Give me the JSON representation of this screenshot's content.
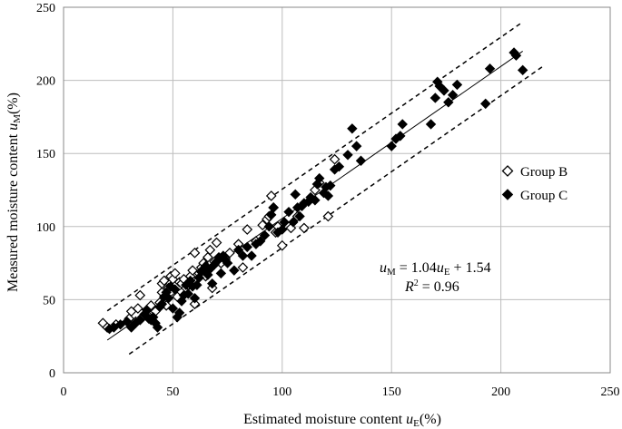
{
  "chart_data": {
    "type": "scatter",
    "title": "",
    "xlabel": "Estimated moisture content u_E(%)",
    "ylabel": "Measured moisture content u_M(%)",
    "xlabel_parts": {
      "text": "Estimated moisture content ",
      "var": "u",
      "sub": "E",
      "suffix": "(%)"
    },
    "ylabel_parts": {
      "text": "Measured moisture content ",
      "var": "u",
      "sub": "M",
      "suffix": "(%)"
    },
    "xlim": [
      0,
      250
    ],
    "ylim": [
      0,
      250
    ],
    "xticks": [
      "0",
      "50",
      "100",
      "150",
      "200",
      "250"
    ],
    "yticks": [
      "0",
      "50",
      "100",
      "150",
      "200",
      "250"
    ],
    "grid": true,
    "legend_position": "right",
    "regression": {
      "slope": 1.04,
      "intercept": 1.54,
      "x_range": [
        20,
        210
      ]
    },
    "bounds": {
      "offset": 20,
      "x_range": [
        30,
        220
      ]
    },
    "annotation": {
      "eq_var": "u",
      "eq_sub_lhs": "M",
      "eq_mid": " = 1.04",
      "eq_sub_rhs": "E",
      "eq_tail": " + 1.54",
      "r2_var": "R",
      "r2_sup": "2",
      "r2_tail": " = 0.96"
    },
    "series": [
      {
        "name": "Group B",
        "marker": "open-diamond",
        "points": [
          [
            18,
            34
          ],
          [
            20,
            31
          ],
          [
            24,
            33
          ],
          [
            30,
            37
          ],
          [
            31,
            42
          ],
          [
            33,
            35
          ],
          [
            34,
            44
          ],
          [
            35,
            53
          ],
          [
            36,
            38
          ],
          [
            38,
            40
          ],
          [
            39,
            44
          ],
          [
            40,
            46
          ],
          [
            42,
            42
          ],
          [
            44,
            48
          ],
          [
            45,
            55
          ],
          [
            45,
            61
          ],
          [
            46,
            63
          ],
          [
            47,
            46
          ],
          [
            48,
            58
          ],
          [
            49,
            66
          ],
          [
            50,
            64
          ],
          [
            51,
            68
          ],
          [
            52,
            52
          ],
          [
            53,
            62
          ],
          [
            54,
            61
          ],
          [
            55,
            64
          ],
          [
            56,
            58
          ],
          [
            57,
            60
          ],
          [
            58,
            66
          ],
          [
            59,
            70
          ],
          [
            60,
            47
          ],
          [
            60,
            82
          ],
          [
            62,
            68
          ],
          [
            63,
            72
          ],
          [
            64,
            75
          ],
          [
            65,
            66
          ],
          [
            66,
            79
          ],
          [
            67,
            84
          ],
          [
            68,
            58
          ],
          [
            69,
            76
          ],
          [
            70,
            89
          ],
          [
            72,
            75
          ],
          [
            74,
            78
          ],
          [
            76,
            82
          ],
          [
            80,
            88
          ],
          [
            82,
            72
          ],
          [
            84,
            98
          ],
          [
            88,
            90
          ],
          [
            91,
            101
          ],
          [
            93,
            105
          ],
          [
            94,
            107
          ],
          [
            95,
            121
          ],
          [
            96,
            113
          ],
          [
            97,
            96
          ],
          [
            98,
            100
          ],
          [
            100,
            87
          ],
          [
            104,
            99
          ],
          [
            107,
            107
          ],
          [
            110,
            99
          ],
          [
            115,
            125
          ],
          [
            117,
            130
          ],
          [
            121,
            107
          ],
          [
            124,
            146
          ]
        ]
      },
      {
        "name": "Group C",
        "marker": "filled-diamond",
        "points": [
          [
            21,
            30
          ],
          [
            23,
            31
          ],
          [
            26,
            33
          ],
          [
            29,
            35
          ],
          [
            31,
            31
          ],
          [
            33,
            34
          ],
          [
            35,
            36
          ],
          [
            37,
            40
          ],
          [
            38,
            43
          ],
          [
            39,
            37
          ],
          [
            40,
            36
          ],
          [
            41,
            38
          ],
          [
            42,
            34
          ],
          [
            43,
            31
          ],
          [
            44,
            45
          ],
          [
            45,
            47
          ],
          [
            46,
            52
          ],
          [
            47,
            55
          ],
          [
            48,
            51
          ],
          [
            49,
            59
          ],
          [
            50,
            44
          ],
          [
            51,
            57
          ],
          [
            52,
            38
          ],
          [
            53,
            41
          ],
          [
            54,
            49
          ],
          [
            55,
            53
          ],
          [
            56,
            60
          ],
          [
            57,
            54
          ],
          [
            58,
            63
          ],
          [
            59,
            59
          ],
          [
            60,
            51
          ],
          [
            61,
            60
          ],
          [
            62,
            65
          ],
          [
            63,
            69
          ],
          [
            64,
            71
          ],
          [
            65,
            73
          ],
          [
            66,
            67
          ],
          [
            67,
            71
          ],
          [
            68,
            61
          ],
          [
            69,
            74
          ],
          [
            70,
            76
          ],
          [
            71,
            79
          ],
          [
            72,
            68
          ],
          [
            73,
            80
          ],
          [
            74,
            77
          ],
          [
            75,
            75
          ],
          [
            78,
            70
          ],
          [
            80,
            84
          ],
          [
            82,
            80
          ],
          [
            84,
            86
          ],
          [
            86,
            80
          ],
          [
            88,
            88
          ],
          [
            90,
            90
          ],
          [
            92,
            94
          ],
          [
            94,
            100
          ],
          [
            95,
            108
          ],
          [
            96,
            113
          ],
          [
            98,
            96
          ],
          [
            100,
            98
          ],
          [
            101,
            103
          ],
          [
            103,
            110
          ],
          [
            105,
            103
          ],
          [
            106,
            122
          ],
          [
            107,
            113
          ],
          [
            108,
            107
          ],
          [
            109,
            114
          ],
          [
            110,
            116
          ],
          [
            112,
            117
          ],
          [
            113,
            120
          ],
          [
            115,
            118
          ],
          [
            116,
            129
          ],
          [
            117,
            133
          ],
          [
            119,
            123
          ],
          [
            120,
            127
          ],
          [
            121,
            121
          ],
          [
            122,
            128
          ],
          [
            124,
            139
          ],
          [
            126,
            141
          ],
          [
            130,
            149
          ],
          [
            132,
            167
          ],
          [
            134,
            155
          ],
          [
            136,
            145
          ],
          [
            150,
            155
          ],
          [
            152,
            160
          ],
          [
            154,
            162
          ],
          [
            155,
            170
          ],
          [
            168,
            170
          ],
          [
            170,
            188
          ],
          [
            171,
            199
          ],
          [
            172,
            196
          ],
          [
            174,
            193
          ],
          [
            176,
            185
          ],
          [
            178,
            190
          ],
          [
            180,
            197
          ],
          [
            193,
            184
          ],
          [
            195,
            208
          ],
          [
            206,
            219
          ],
          [
            207,
            217
          ],
          [
            210,
            207
          ]
        ]
      }
    ]
  }
}
